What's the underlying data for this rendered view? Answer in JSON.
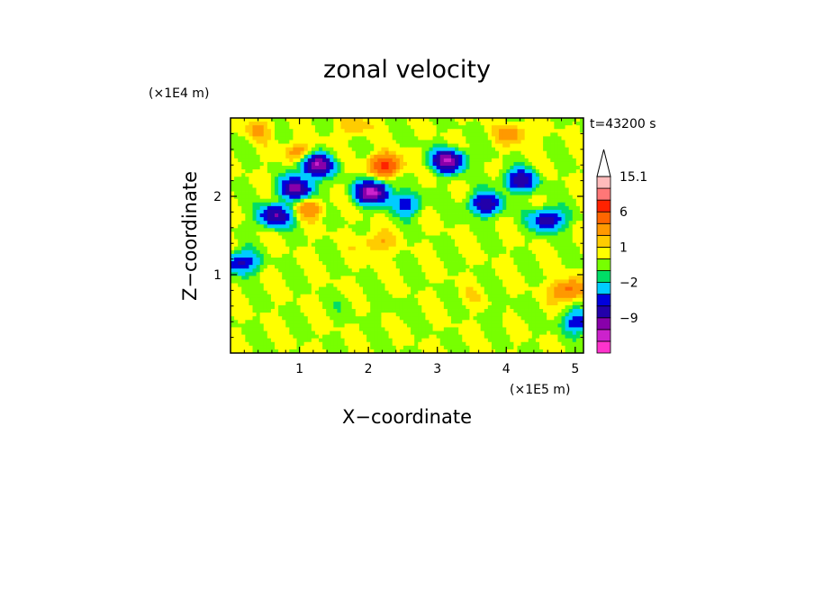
{
  "chart_data": {
    "type": "heatmap",
    "title": "zonal velocity",
    "xlabel": "X−coordinate",
    "ylabel": "Z−coordinate",
    "x_unit": "(×1E5 m)",
    "y_unit": "(×1E4 m)",
    "time_label": "t=43200 s",
    "xlim": [
      0,
      5.12
    ],
    "ylim": [
      0,
      3.0
    ],
    "x_ticks": [
      {
        "value": 1,
        "label": "1"
      },
      {
        "value": 2,
        "label": "2"
      },
      {
        "value": 3,
        "label": "3"
      },
      {
        "value": 4,
        "label": "4"
      },
      {
        "value": 5,
        "label": "5"
      }
    ],
    "y_ticks": [
      {
        "value": 1,
        "label": "1"
      },
      {
        "value": 2,
        "label": "2"
      }
    ],
    "colorbar": {
      "labels": [
        {
          "level": 15.1,
          "label": "15.1"
        },
        {
          "level": 6,
          "label": "6"
        },
        {
          "level": 1,
          "label": "1"
        },
        {
          "level": -2,
          "label": "−2"
        },
        {
          "level": -9,
          "label": "−9"
        }
      ],
      "levels": [
        -15,
        -12,
        -9,
        -6,
        -4,
        -2,
        -1,
        0,
        1,
        2,
        4,
        6,
        9,
        12,
        15.1
      ],
      "colors": [
        "#ff33cc",
        "#cc22cc",
        "#8800aa",
        "#2200aa",
        "#0000dd",
        "#00ccff",
        "#00dd66",
        "#77ff00",
        "#ffff00",
        "#ffcc00",
        "#ff9900",
        "#ff6600",
        "#ff2200",
        "#ff7777",
        "#ffbbbb"
      ],
      "extend_max_color": "#ffffff"
    },
    "features": [
      {
        "x": 2.25,
        "z": 2.4,
        "value": 7
      },
      {
        "x": 2.05,
        "z": 2.05,
        "value": -13
      },
      {
        "x": 2.55,
        "z": 1.9,
        "value": -5
      },
      {
        "x": 3.15,
        "z": 2.45,
        "value": -12
      },
      {
        "x": 3.7,
        "z": 1.9,
        "value": -8
      },
      {
        "x": 1.25,
        "z": 2.4,
        "value": -12
      },
      {
        "x": 0.95,
        "z": 2.1,
        "value": -10
      },
      {
        "x": 0.65,
        "z": 1.75,
        "value": -9
      },
      {
        "x": 1.0,
        "z": 2.55,
        "value": 3
      },
      {
        "x": 1.15,
        "z": 1.85,
        "value": 3
      },
      {
        "x": 4.2,
        "z": 2.2,
        "value": -8
      },
      {
        "x": 4.6,
        "z": 1.7,
        "value": -8
      },
      {
        "x": 4.9,
        "z": 0.8,
        "value": 5
      },
      {
        "x": 5.05,
        "z": 0.4,
        "value": -6
      },
      {
        "x": 0.15,
        "z": 1.15,
        "value": -7
      },
      {
        "x": 2.4,
        "z": 0.55,
        "value": -0.5
      },
      {
        "x": 3.5,
        "z": 0.7,
        "value": 0.5
      },
      {
        "x": 4.0,
        "z": 0.5,
        "value": -0.5
      },
      {
        "x": 1.7,
        "z": 0.6,
        "value": -0.5
      },
      {
        "x": 2.1,
        "z": 1.4,
        "value": 2.5
      },
      {
        "x": 1.8,
        "z": 2.9,
        "value": 2
      },
      {
        "x": 4.1,
        "z": 2.8,
        "value": 3
      },
      {
        "x": 0.4,
        "z": 2.85,
        "value": 2
      }
    ]
  }
}
